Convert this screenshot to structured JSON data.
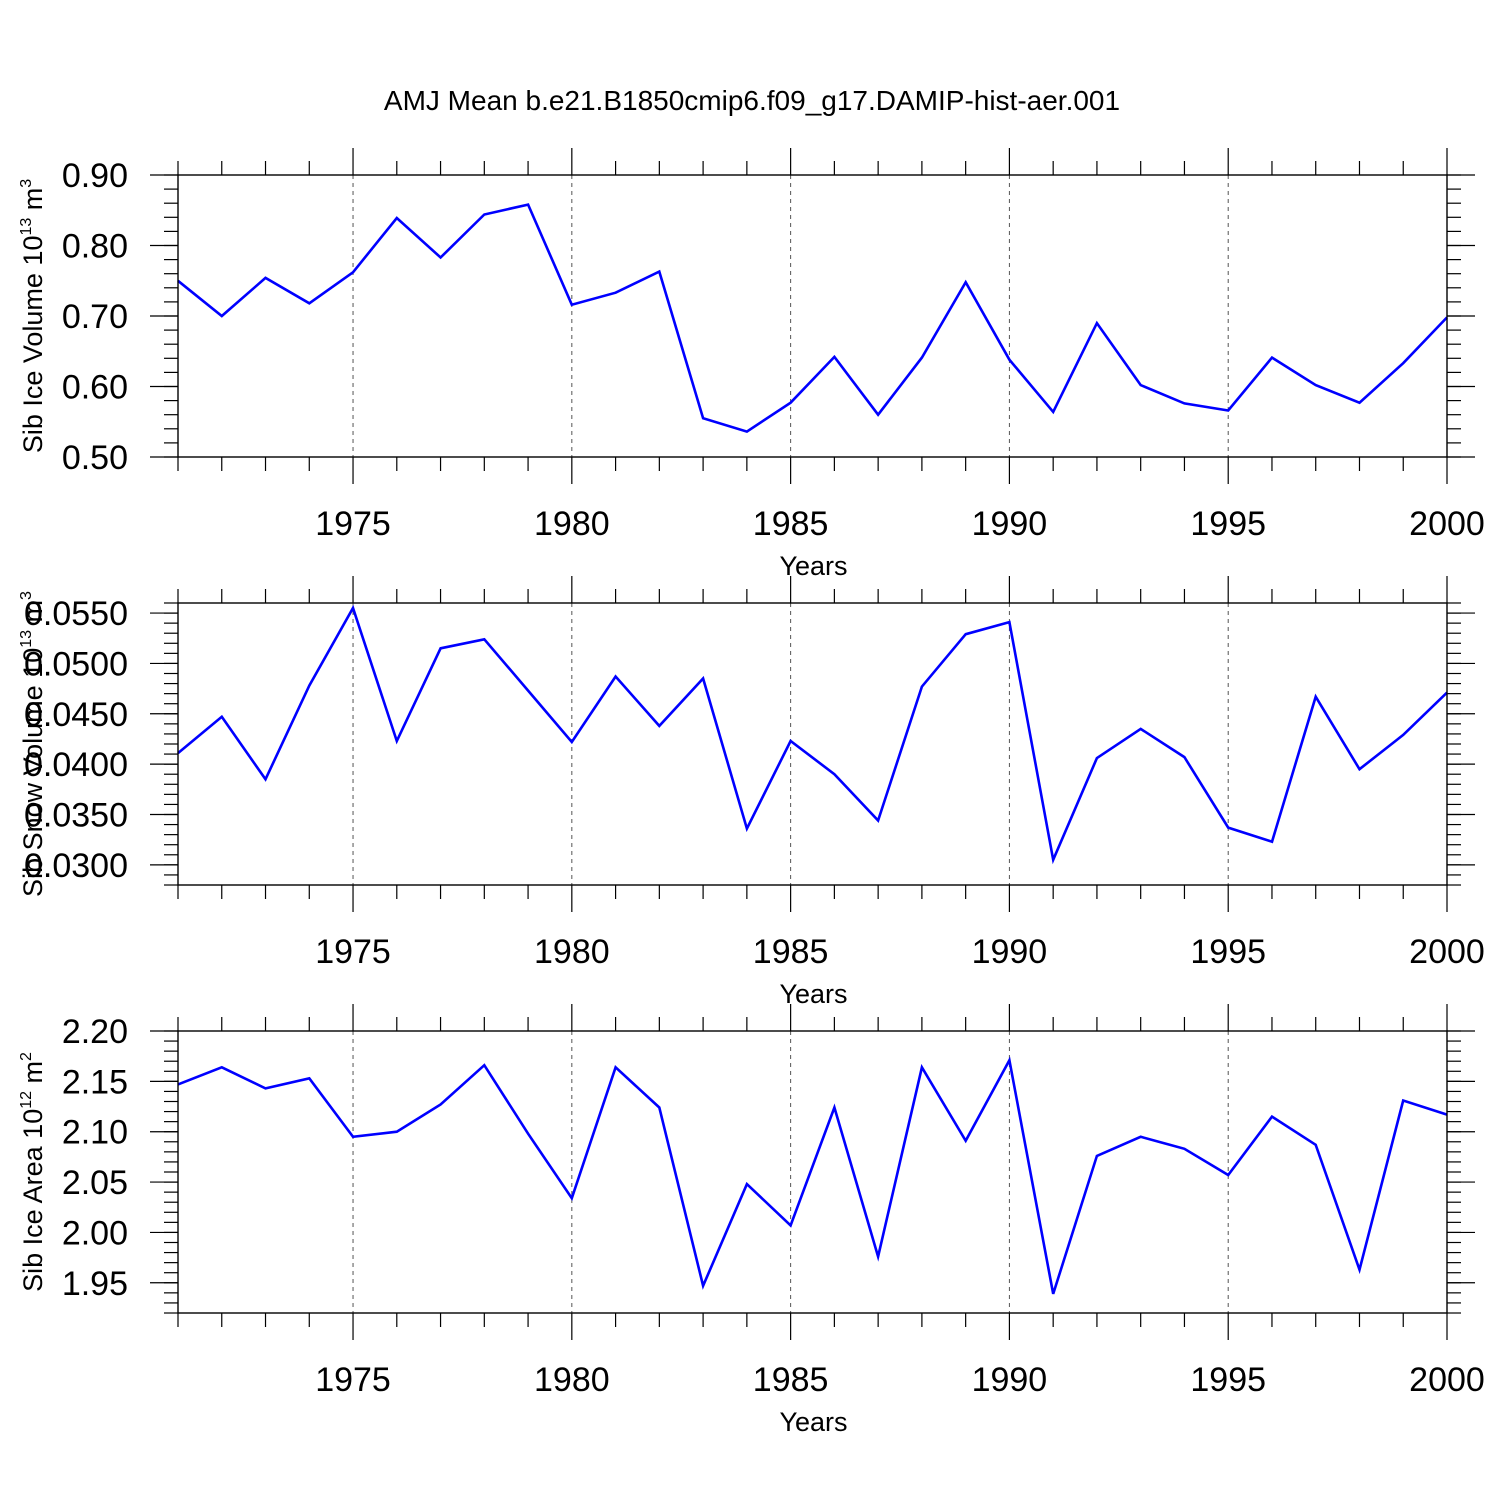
{
  "title": "AMJ Mean b.e21.B1850cmip6.f09_g17.DAMIP-hist-aer.001",
  "chart_data": [
    {
      "type": "line",
      "ylabel": "Sib Ice Volume 10",
      "ylabel_exp": "13",
      "ylabel_unit": " m",
      "ylabel_unit_exp": "3",
      "xlabel": "Years",
      "xlim": [
        1971,
        2000
      ],
      "ylim": [
        0.5,
        0.9
      ],
      "yticks": [
        0.5,
        0.6,
        0.7,
        0.8,
        0.9
      ],
      "ytick_labels": [
        "0.50",
        "0.60",
        "0.70",
        "0.80",
        "0.90"
      ],
      "yminor_step": 0.02,
      "xticks": [
        1975,
        1980,
        1985,
        1990,
        1995,
        2000
      ],
      "xtick_labels": [
        "1975",
        "1980",
        "1985",
        "1990",
        "1995",
        "2000"
      ],
      "color": "#0000ff",
      "grid": "vertical dashed at major x ticks",
      "x": [
        1971,
        1972,
        1973,
        1974,
        1975,
        1976,
        1977,
        1978,
        1979,
        1980,
        1981,
        1982,
        1983,
        1984,
        1985,
        1986,
        1987,
        1988,
        1989,
        1990,
        1991,
        1992,
        1993,
        1994,
        1995,
        1996,
        1997,
        1998,
        1999,
        2000
      ],
      "values": [
        0.75,
        0.7,
        0.754,
        0.718,
        0.762,
        0.839,
        0.783,
        0.844,
        0.858,
        0.716,
        0.733,
        0.763,
        0.555,
        0.536,
        0.577,
        0.642,
        0.56,
        0.641,
        0.748,
        0.638,
        0.564,
        0.69,
        0.602,
        0.576,
        0.566,
        0.641,
        0.602,
        0.577,
        0.633,
        0.698
      ]
    },
    {
      "type": "line",
      "ylabel": "Sib Snow Volume 10",
      "ylabel_exp": "13",
      "ylabel_unit": " m",
      "ylabel_unit_exp": "3",
      "xlabel": "Years",
      "xlim": [
        1971,
        2000
      ],
      "ylim": [
        0.028,
        0.056
      ],
      "yticks": [
        0.03,
        0.035,
        0.04,
        0.045,
        0.05,
        0.055
      ],
      "ytick_labels": [
        "0.0300",
        "0.0350",
        "0.0400",
        "0.0450",
        "0.0500",
        "0.0550"
      ],
      "yminor_step": 0.001,
      "xticks": [
        1975,
        1980,
        1985,
        1990,
        1995,
        2000
      ],
      "xtick_labels": [
        "1975",
        "1980",
        "1985",
        "1990",
        "1995",
        "2000"
      ],
      "color": "#0000ff",
      "grid": "vertical dashed at major x ticks",
      "x": [
        1971,
        1972,
        1973,
        1974,
        1975,
        1976,
        1977,
        1978,
        1979,
        1980,
        1981,
        1982,
        1983,
        1984,
        1985,
        1986,
        1987,
        1988,
        1989,
        1990,
        1991,
        1992,
        1993,
        1994,
        1995,
        1996,
        1997,
        1998,
        1999,
        2000
      ],
      "values": [
        0.0411,
        0.0447,
        0.0385,
        0.0478,
        0.0555,
        0.0423,
        0.0515,
        0.0524,
        0.0473,
        0.0422,
        0.0487,
        0.0438,
        0.0485,
        0.0336,
        0.0423,
        0.039,
        0.0344,
        0.0477,
        0.0529,
        0.0541,
        0.0305,
        0.0406,
        0.0435,
        0.0407,
        0.0337,
        0.0323,
        0.0467,
        0.0395,
        0.0429,
        0.0471
      ]
    },
    {
      "type": "line",
      "ylabel": "Sib Ice Area 10",
      "ylabel_exp": "12",
      "ylabel_unit": " m",
      "ylabel_unit_exp": "2",
      "xlabel": "Years",
      "xlim": [
        1971,
        2000
      ],
      "ylim": [
        1.92,
        2.2
      ],
      "yticks": [
        1.95,
        2.0,
        2.05,
        2.1,
        2.15,
        2.2
      ],
      "ytick_labels": [
        "1.95",
        "2.00",
        "2.05",
        "2.10",
        "2.15",
        "2.20"
      ],
      "yminor_step": 0.01,
      "xticks": [
        1975,
        1980,
        1985,
        1990,
        1995,
        2000
      ],
      "xtick_labels": [
        "1975",
        "1980",
        "1985",
        "1990",
        "1995",
        "2000"
      ],
      "color": "#0000ff",
      "grid": "vertical dashed at major x ticks",
      "x": [
        1971,
        1972,
        1973,
        1974,
        1975,
        1976,
        1977,
        1978,
        1979,
        1980,
        1981,
        1982,
        1983,
        1984,
        1985,
        1986,
        1987,
        1988,
        1989,
        1990,
        1991,
        1992,
        1993,
        1994,
        1995,
        1996,
        1997,
        1998,
        1999,
        2000
      ],
      "values": [
        2.147,
        2.164,
        2.143,
        2.153,
        2.095,
        2.1,
        2.127,
        2.166,
        2.098,
        2.034,
        2.164,
        2.124,
        1.947,
        2.048,
        2.007,
        2.124,
        1.976,
        2.164,
        2.091,
        2.171,
        1.939,
        2.076,
        2.095,
        2.083,
        2.057,
        2.115,
        2.087,
        1.963,
        2.131,
        2.117
      ]
    }
  ]
}
